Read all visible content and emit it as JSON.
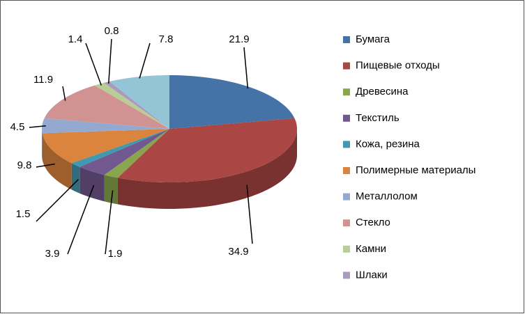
{
  "chart_data": {
    "type": "pie3d",
    "categories": [
      "Бумага",
      "Пищевые отходы",
      "Древесина",
      "Текстиль",
      "Кожа, резина",
      "Полимерные материалы",
      "Металлолом",
      "Стекло",
      "Камни",
      "Шлаки",
      null
    ],
    "values": [
      21.9,
      34.9,
      1.9,
      3.9,
      1.5,
      9.8,
      4.5,
      11.9,
      1.4,
      0.8,
      7.8
    ],
    "colors": [
      "#4572a7",
      "#aa4643",
      "#89a54e",
      "#71588f",
      "#4198af",
      "#db843d",
      "#93a9cf",
      "#d19392",
      "#b9cd96",
      "#a99bbd",
      "#93c5d6"
    ],
    "legend": "right"
  }
}
